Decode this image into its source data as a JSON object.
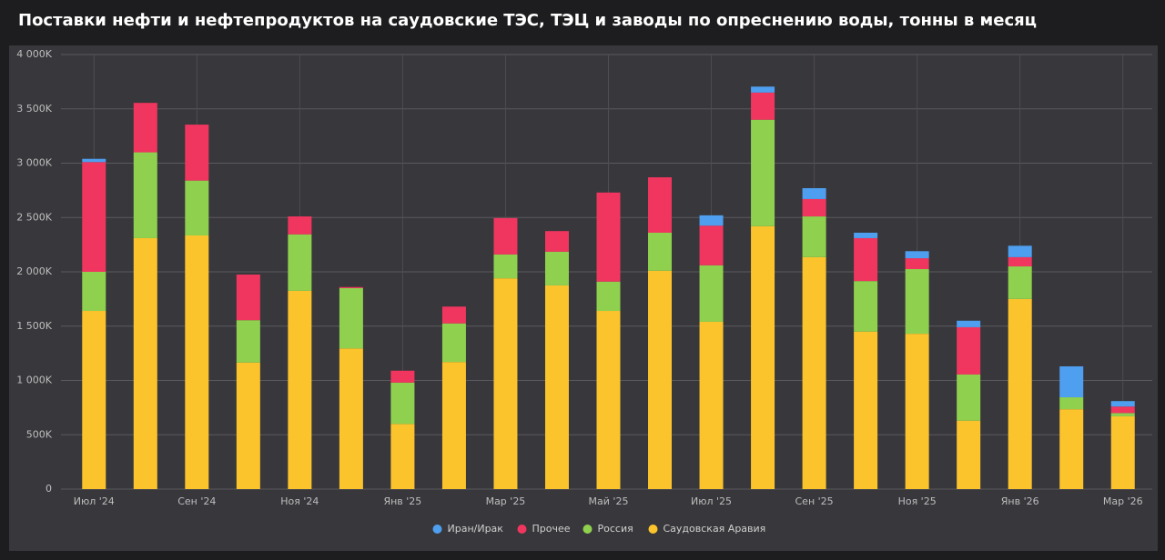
{
  "chart_data": {
    "type": "stacked_bar",
    "title": "Поставки нефти и нефтепродуктов на саудовские ТЭС, ТЭЦ и заводы по опреснению воды, тонны в месяц",
    "categories": [
      "Июл '24",
      null,
      "Сен '24",
      null,
      "Ноя '24",
      null,
      "Янв '25",
      null,
      "Мар '25",
      null,
      "Май '25",
      null,
      "Июл '25",
      null,
      "Сен '25",
      null,
      "Ноя '25",
      null,
      "Янв '26",
      null,
      "Мар '26"
    ],
    "series": [
      {
        "name": "Иран/Ирак",
        "color": "#4f9ff0",
        "values": [
          30000,
          0,
          0,
          0,
          0,
          0,
          0,
          0,
          0,
          0,
          0,
          0,
          95000,
          55000,
          100000,
          50000,
          65000,
          60000,
          105000,
          285000,
          50000
        ]
      },
      {
        "name": "Прочее",
        "color": "#f0365f",
        "values": [
          1010000,
          455000,
          515000,
          420000,
          165000,
          10000,
          110000,
          155000,
          335000,
          190000,
          820000,
          510000,
          365000,
          250000,
          160000,
          395000,
          100000,
          435000,
          85000,
          0,
          60000
        ]
      },
      {
        "name": "Россия",
        "color": "#8fd14f",
        "values": [
          360000,
          790000,
          505000,
          390000,
          520000,
          555000,
          380000,
          355000,
          220000,
          310000,
          270000,
          350000,
          520000,
          980000,
          375000,
          465000,
          595000,
          425000,
          300000,
          110000,
          30000
        ]
      },
      {
        "name": "Саудовская Аравия",
        "color": "#fcc42c",
        "values": [
          1640000,
          2310000,
          2335000,
          1165000,
          1825000,
          1295000,
          600000,
          1170000,
          1940000,
          1875000,
          1640000,
          2010000,
          1540000,
          2420000,
          2135000,
          1450000,
          1430000,
          630000,
          1750000,
          735000,
          670000
        ]
      }
    ],
    "ylim": [
      0,
      4000000
    ],
    "yticks": [
      0,
      {
        "value": 500000,
        "label": "500K"
      },
      {
        "value": 1000000,
        "label": "1 000K"
      },
      {
        "value": 1500000,
        "label": "1 500K"
      },
      {
        "value": 2000000,
        "label": "2 000K"
      },
      {
        "value": 2500000,
        "label": "2 500K"
      },
      {
        "value": 3000000,
        "label": "3 000K"
      },
      {
        "value": 3500000,
        "label": "3 500K"
      },
      {
        "value": 4000000,
        "label": "4 000K"
      }
    ],
    "grid": true,
    "legend": "bottom"
  }
}
